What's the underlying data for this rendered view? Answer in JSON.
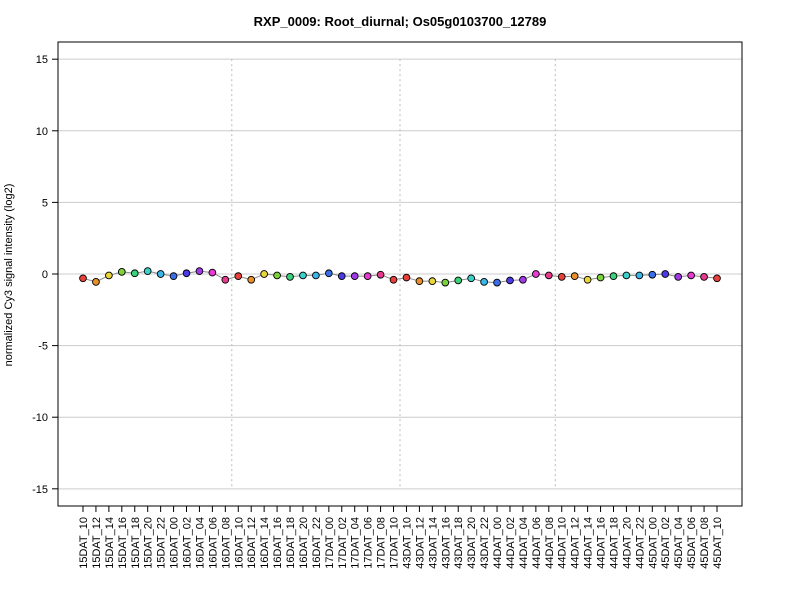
{
  "chart_data": {
    "type": "line",
    "title": "RXP_0009: Root_diurnal; Os05g0103700_12789",
    "ylabel": "normalized Cy3 signal intensity (log2)",
    "xlabel": "",
    "ylim": [
      -16.2,
      16.2
    ],
    "yticks": [
      -15,
      -10,
      -5,
      0,
      5,
      10,
      15
    ],
    "grid": "horizontal",
    "group_separators_after_index": [
      11,
      24,
      36
    ],
    "categories": [
      "15DAT_10",
      "15DAT_12",
      "15DAT_14",
      "15DAT_16",
      "15DAT_18",
      "15DAT_20",
      "15DAT_22",
      "16DAT_00",
      "16DAT_02",
      "16DAT_04",
      "16DAT_06",
      "16DAT_08",
      "16DAT_10",
      "16DAT_12",
      "16DAT_14",
      "16DAT_16",
      "16DAT_18",
      "16DAT_20",
      "16DAT_22",
      "17DAT_00",
      "17DAT_02",
      "17DAT_04",
      "17DAT_06",
      "17DAT_08",
      "17DAT_10",
      "43DAT_10",
      "43DAT_12",
      "43DAT_14",
      "43DAT_16",
      "43DAT_18",
      "43DAT_20",
      "43DAT_22",
      "44DAT_00",
      "44DAT_02",
      "44DAT_04",
      "44DAT_06",
      "44DAT_08",
      "44DAT_10",
      "44DAT_12",
      "44DAT_14",
      "44DAT_16",
      "44DAT_18",
      "44DAT_20",
      "44DAT_22",
      "45DAT_00",
      "45DAT_02",
      "45DAT_04",
      "45DAT_06",
      "45DAT_08",
      "45DAT_10"
    ],
    "values": [
      -0.3,
      -0.55,
      -0.1,
      0.15,
      0.05,
      0.2,
      0.0,
      -0.15,
      0.05,
      0.2,
      0.1,
      -0.4,
      -0.15,
      -0.4,
      0.0,
      -0.1,
      -0.2,
      -0.1,
      -0.1,
      0.05,
      -0.15,
      -0.15,
      -0.15,
      -0.05,
      -0.4,
      -0.25,
      -0.5,
      -0.5,
      -0.6,
      -0.45,
      -0.3,
      -0.55,
      -0.6,
      -0.45,
      -0.4,
      0.0,
      -0.1,
      -0.2,
      -0.15,
      -0.4,
      -0.25,
      -0.15,
      -0.1,
      -0.1,
      -0.05,
      0.0,
      -0.2,
      -0.1,
      -0.2,
      -0.3
    ],
    "point_colors": [
      "#e8403a",
      "#e8912a",
      "#e8d63a",
      "#7bd23a",
      "#3ad27b",
      "#3ad2c8",
      "#3ab6e8",
      "#3a6ee8",
      "#4a3ae8",
      "#a03ae8",
      "#e83ad2",
      "#e83a8c",
      "#e8403a",
      "#e8912a",
      "#e8d63a",
      "#7bd23a",
      "#3ad27b",
      "#3ad2c8",
      "#3ab6e8",
      "#3a6ee8",
      "#4a3ae8",
      "#a03ae8",
      "#e83ad2",
      "#e83a8c",
      "#e8403a",
      "#e8403a",
      "#e8912a",
      "#e8d63a",
      "#7bd23a",
      "#3ad27b",
      "#3ad2c8",
      "#3ab6e8",
      "#3a6ee8",
      "#4a3ae8",
      "#a03ae8",
      "#e83ad2",
      "#e83a8c",
      "#e8403a",
      "#e8912a",
      "#e8d63a",
      "#7bd23a",
      "#3ad27b",
      "#3ad2c8",
      "#3ab6e8",
      "#3a6ee8",
      "#4a3ae8",
      "#a03ae8",
      "#e83ad2",
      "#e83a8c",
      "#e8403a"
    ],
    "line_color": "#8a8a8a",
    "grid_color": "#cccccc",
    "separator_color": "#bbbbbb"
  }
}
